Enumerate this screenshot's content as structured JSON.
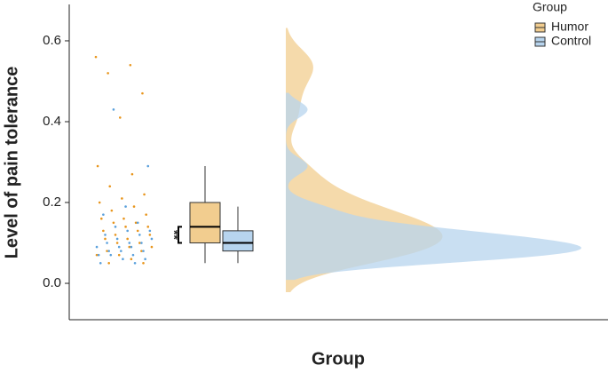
{
  "chart_data": {
    "type": "raincloud",
    "x_label": "Group",
    "y_label": "Level of pain tolerance",
    "legend_title": "Group",
    "legend_position": "top-right",
    "annotation": "**",
    "ylim": [
      -0.09,
      0.69
    ],
    "yticks": [
      {
        "value": 0,
        "label": "0.0"
      },
      0.2,
      0.4,
      0.6
    ],
    "series": [
      {
        "name": "Humor",
        "color": "#e8951c",
        "fill": "#f2cd8f",
        "values": [
          0.56,
          0.54,
          0.52,
          0.47,
          0.41,
          0.29,
          0.27,
          0.24,
          0.22,
          0.21,
          0.2,
          0.19,
          0.18,
          0.17,
          0.16,
          0.16,
          0.15,
          0.15,
          0.14,
          0.14,
          0.13,
          0.13,
          0.12,
          0.12,
          0.11,
          0.11,
          0.1,
          0.1,
          0.09,
          0.09,
          0.08,
          0.08,
          0.07,
          0.07,
          0.06,
          0.05,
          0.05
        ],
        "box": {
          "min": 0.05,
          "q1": 0.1,
          "median": 0.14,
          "q3": 0.2,
          "max": 0.29
        }
      },
      {
        "name": "Control",
        "color": "#5aa0dc",
        "fill": "#b7d4ee",
        "values": [
          0.43,
          0.29,
          0.19,
          0.17,
          0.15,
          0.14,
          0.13,
          0.13,
          0.12,
          0.12,
          0.11,
          0.11,
          0.1,
          0.1,
          0.1,
          0.09,
          0.09,
          0.09,
          0.08,
          0.08,
          0.08,
          0.07,
          0.07,
          0.07,
          0.06,
          0.06,
          0.05,
          0.05
        ],
        "box": {
          "min": 0.05,
          "q1": 0.08,
          "median": 0.1,
          "q3": 0.13,
          "max": 0.19
        }
      }
    ]
  }
}
